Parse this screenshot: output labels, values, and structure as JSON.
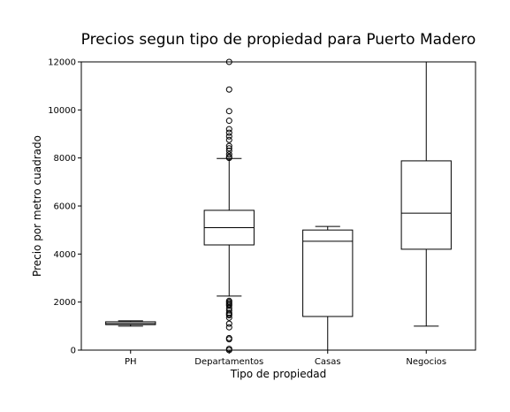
{
  "chart_data": {
    "type": "box",
    "title": "Precios segun tipo de propiedad para Puerto Madero",
    "xlabel": "Tipo de propiedad",
    "ylabel": "Precio por metro cuadrado",
    "ylim": [
      0,
      12000
    ],
    "yticks": [
      "0",
      "2000",
      "4000",
      "6000",
      "8000",
      "10000",
      "12000"
    ],
    "grid": false,
    "categories": [
      "PH",
      "Departamentos",
      "Casas",
      "Negocios"
    ],
    "boxes": [
      {
        "whisker_low": 1000,
        "q1": 1060,
        "median": 1110,
        "q3": 1180,
        "whisker_high": 1220,
        "outliers": []
      },
      {
        "whisker_low": 2250,
        "q1": 4380,
        "median": 5100,
        "q3": 5820,
        "whisker_high": 7980,
        "outliers": [
          0,
          50,
          450,
          500,
          950,
          1100,
          1350,
          1450,
          1500,
          1550,
          1650,
          1750,
          1850,
          1900,
          1950,
          2000,
          2050,
          8000,
          8050,
          8150,
          8300,
          8400,
          8500,
          8750,
          8900,
          9050,
          9200,
          9550,
          9950,
          10850,
          12000
        ]
      },
      {
        "whisker_low": 0,
        "q1": 1400,
        "median": 4530,
        "q3": 5000,
        "whisker_high": 5150,
        "outliers": []
      },
      {
        "whisker_low": 1000,
        "q1": 4200,
        "median": 5700,
        "q3": 7880,
        "whisker_high": 12000,
        "outliers": []
      }
    ]
  }
}
